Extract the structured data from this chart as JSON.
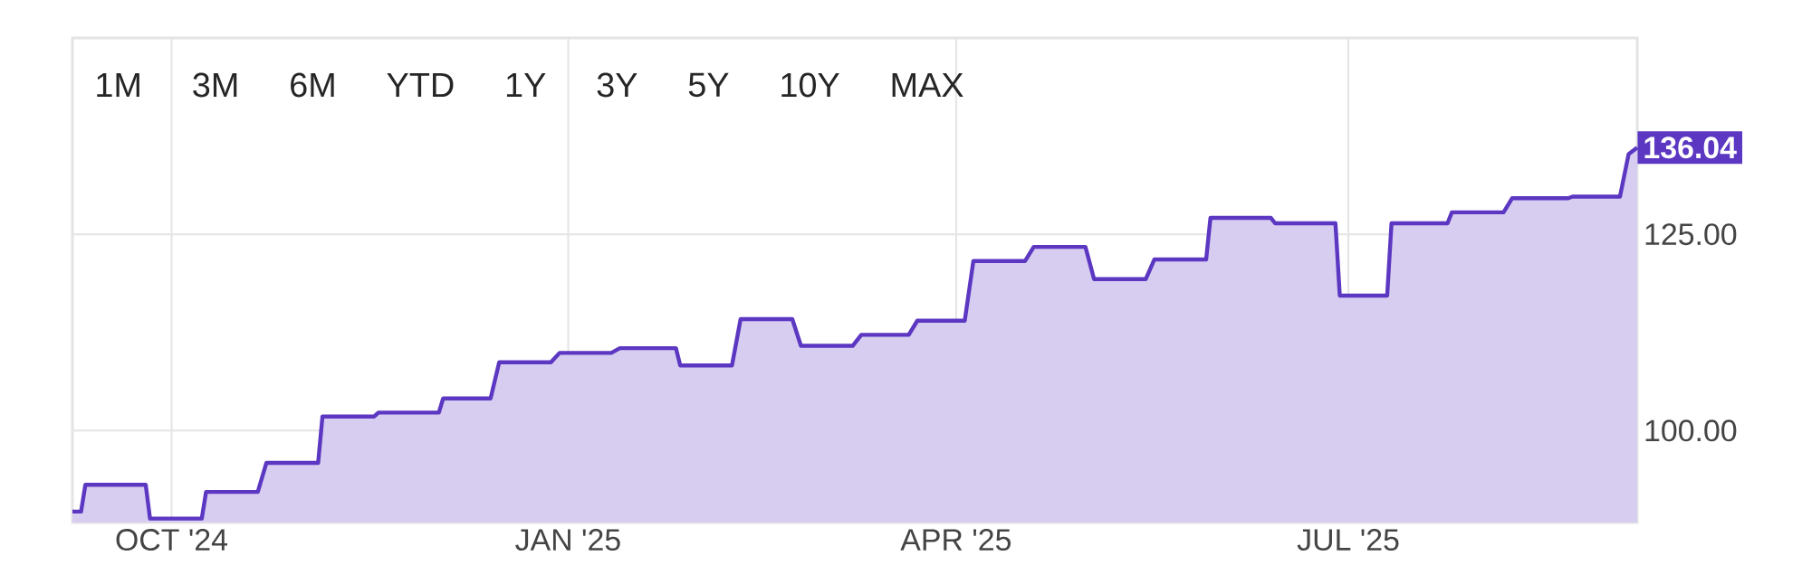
{
  "chart_data": {
    "type": "area",
    "annotations": [
      "1M",
      "3M",
      "6M",
      "YTD",
      "1Y",
      "3Y",
      "5Y",
      "10Y",
      "MAX",
      {
        "text": "136.04",
        "x": "2025-09-06",
        "y": 136.04
      }
    ],
    "series": [
      {
        "color": "#5b37c2",
        "x": [
          "2024-09-08",
          "2024-09-10",
          "2024-09-11",
          "2024-09-25",
          "2024-09-26",
          "2024-10-08",
          "2024-10-09",
          "2024-10-21",
          "2024-10-23",
          "2024-11-04",
          "2024-11-05",
          "2024-11-17",
          "2024-11-18",
          "2024-12-02",
          "2024-12-03",
          "2024-12-14",
          "2024-12-16",
          "2024-12-28",
          "2024-12-30",
          "2025-01-11",
          "2025-01-13",
          "2025-01-26",
          "2025-01-27",
          "2025-02-08",
          "2025-02-10",
          "2025-02-22",
          "2025-02-24",
          "2025-03-08",
          "2025-03-10",
          "2025-03-21",
          "2025-03-23",
          "2025-04-03",
          "2025-04-05",
          "2025-04-17",
          "2025-04-19",
          "2025-05-01",
          "2025-05-03",
          "2025-05-15",
          "2025-05-17",
          "2025-05-29",
          "2025-05-30",
          "2025-06-13",
          "2025-06-14",
          "2025-06-28",
          "2025-06-29",
          "2025-07-10",
          "2025-07-11",
          "2025-07-24",
          "2025-07-25",
          "2025-08-06",
          "2025-08-08",
          "2025-08-21",
          "2025-08-22",
          "2025-09-02",
          "2025-09-04",
          "2025-09-06"
        ],
        "values": [
          89.7,
          89.7,
          93.1,
          93.1,
          88.8,
          88.8,
          92.2,
          92.2,
          95.9,
          95.9,
          101.8,
          101.8,
          102.3,
          102.3,
          104.1,
          104.1,
          108.7,
          108.7,
          109.9,
          109.9,
          110.5,
          110.5,
          108.3,
          108.3,
          114.2,
          114.2,
          110.8,
          110.8,
          112.2,
          112.2,
          114.0,
          114.0,
          121.6,
          121.6,
          123.4,
          123.4,
          119.3,
          119.3,
          121.8,
          121.8,
          127.1,
          127.1,
          126.4,
          126.4,
          117.2,
          117.2,
          126.4,
          126.4,
          127.8,
          127.8,
          129.6,
          129.6,
          129.8,
          129.8,
          135.2,
          136.04
        ]
      }
    ],
    "xlim": [
      "2024-09-08",
      "2025-09-06"
    ],
    "xticks": [
      {
        "value": "2024-10-01",
        "label": "OCT '24"
      },
      {
        "value": "2025-01-01",
        "label": "JAN '25"
      },
      {
        "value": "2025-04-01",
        "label": "APR '25"
      },
      {
        "value": "2025-07-01",
        "label": "JUL '25"
      }
    ],
    "ylim": [
      88.3,
      150
    ],
    "yticks": [
      {
        "value": 100,
        "label": "100.00"
      },
      {
        "value": 125,
        "label": "125.00"
      }
    ],
    "grid": true,
    "marker": "none",
    "line_style": "solid"
  }
}
